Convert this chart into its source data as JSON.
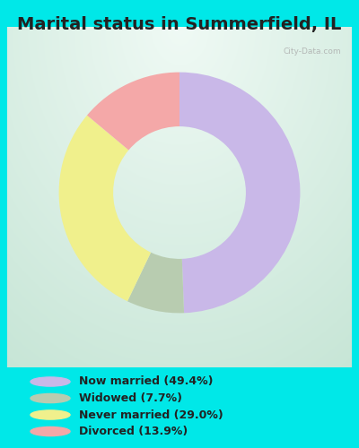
{
  "title": "Marital status in Summerfield, IL",
  "slices": [
    49.4,
    7.7,
    29.0,
    13.9
  ],
  "colors": [
    "#c9b8e8",
    "#b8ccb0",
    "#f0f08c",
    "#f4a8a8"
  ],
  "labels": [
    "Now married (49.4%)",
    "Widowed (7.7%)",
    "Never married (29.0%)",
    "Divorced (13.9%)"
  ],
  "legend_colors": [
    "#c9b8e8",
    "#b8ccb0",
    "#f0f08c",
    "#f4a8a8"
  ],
  "outer_bg": "#00e8e8",
  "title_fontsize": 14,
  "watermark": "City-Data.com",
  "donut_width": 0.45,
  "start_angle": 90,
  "chart_bg_top_left": "#e8f4ee",
  "chart_bg_bottom_right": "#d0ead8"
}
